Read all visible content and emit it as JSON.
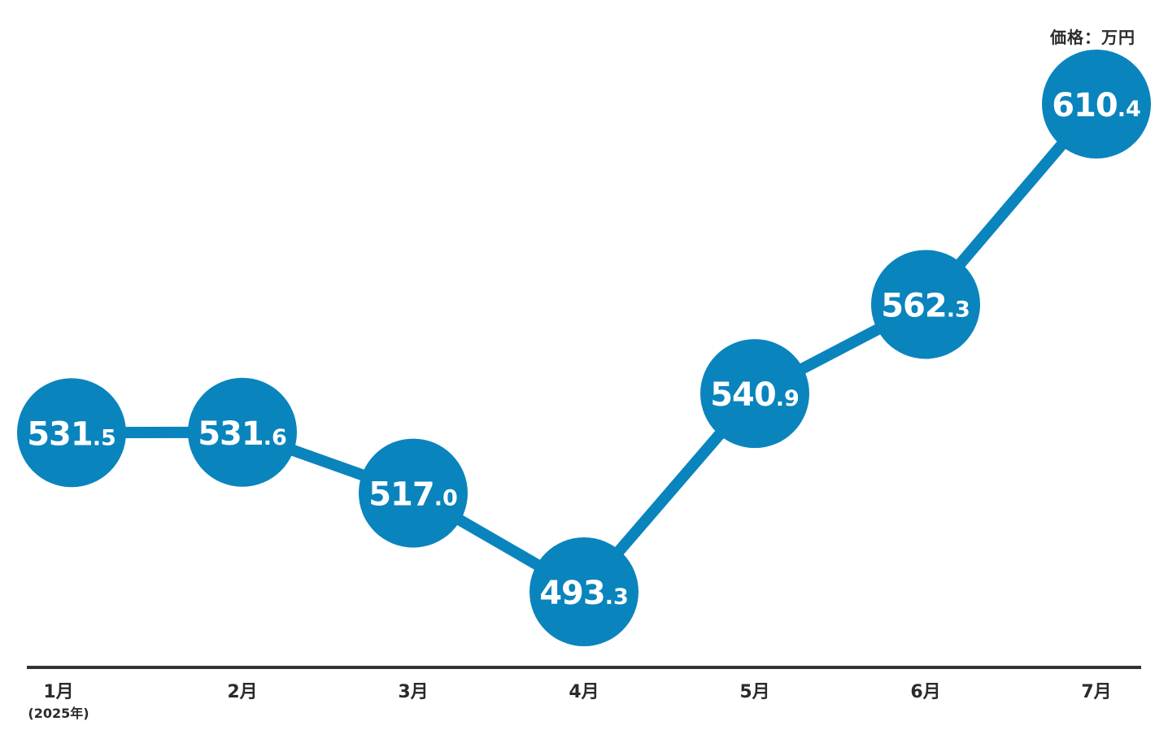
{
  "chart_data": {
    "type": "line",
    "unit_label": "価格：万円",
    "categories": [
      "1月",
      "2月",
      "3月",
      "4月",
      "5月",
      "6月",
      "7月"
    ],
    "category_sub": [
      "(2025年)",
      "",
      "",
      "",
      "",
      "",
      ""
    ],
    "values": [
      531.5,
      531.6,
      517.0,
      493.3,
      540.9,
      562.3,
      610.4
    ],
    "colors": {
      "series": "#0a84bd",
      "label": "#ffffff",
      "axis": "#333333",
      "text": "#2b2b2b"
    }
  }
}
